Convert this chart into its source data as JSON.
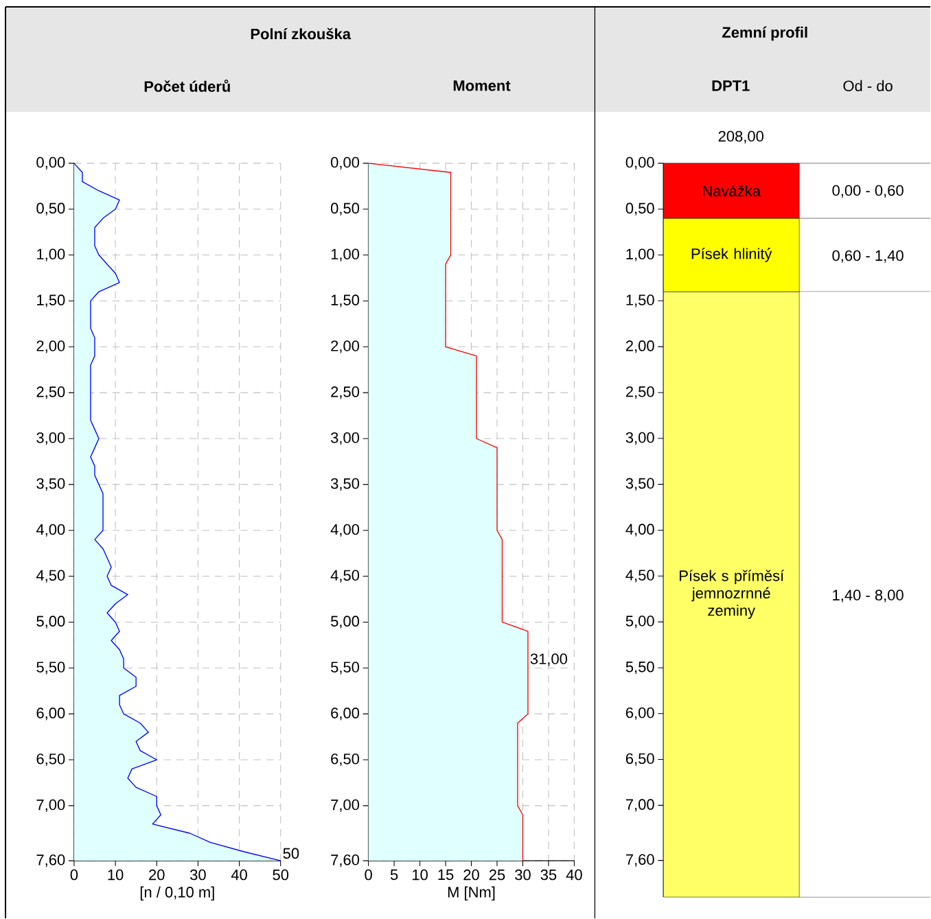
{
  "chart_data": [
    {
      "type": "area",
      "orientation": "horizontal",
      "title": "Polní zkouška",
      "subtitle": "Počet úderů",
      "xlabel": "[n / 0,10 m]",
      "x": [
        0,
        0.1,
        0.2,
        0.3,
        0.4,
        0.5,
        0.6,
        0.7,
        0.8,
        0.9,
        1.0,
        1.1,
        1.2,
        1.3,
        1.4,
        1.5,
        1.6,
        1.7,
        1.8,
        1.9,
        2.0,
        2.1,
        2.2,
        2.3,
        2.4,
        2.5,
        2.6,
        2.7,
        2.8,
        2.9,
        3.0,
        3.1,
        3.2,
        3.3,
        3.4,
        3.5,
        3.6,
        3.7,
        3.8,
        3.9,
        4.0,
        4.1,
        4.2,
        4.3,
        4.4,
        4.5,
        4.6,
        4.7,
        4.8,
        4.9,
        5.0,
        5.1,
        5.2,
        5.3,
        5.4,
        5.5,
        5.6,
        5.7,
        5.8,
        5.9,
        6.0,
        6.1,
        6.2,
        6.3,
        6.4,
        6.5,
        6.6,
        6.7,
        6.8,
        6.9,
        7.0,
        7.1,
        7.2,
        7.3,
        7.4,
        7.5,
        7.6
      ],
      "series": [
        {
          "color": "#0000ff",
          "values": [
            0,
            2,
            2,
            6,
            11,
            10,
            7,
            5,
            5,
            5,
            6,
            8,
            10,
            11,
            6,
            4,
            4,
            4,
            4,
            5,
            5,
            5,
            4,
            4,
            4,
            4,
            4,
            4,
            4,
            5,
            6,
            5,
            4,
            5,
            5,
            6,
            7,
            7,
            7,
            7,
            7,
            5,
            7,
            8,
            9,
            8,
            9,
            13,
            10,
            8,
            10,
            11,
            9,
            11,
            12,
            12,
            15,
            15,
            11,
            11,
            12,
            16,
            18,
            15,
            16,
            20,
            14,
            13,
            15,
            20,
            20,
            21,
            19,
            28,
            33,
            41,
            50
          ]
        }
      ],
      "annotations": [
        {
          "text": "50",
          "x": 50,
          "y": 7.6
        }
      ],
      "xlim": [
        0,
        50
      ],
      "xticks": [
        0,
        10,
        20,
        30,
        40,
        50
      ],
      "ylim": [
        7.6,
        0
      ],
      "yticks": [
        {
          "value": 0,
          "label": "0,00"
        },
        {
          "value": 0.5,
          "label": "0,50"
        },
        {
          "value": 1,
          "label": "1,00"
        },
        {
          "value": 1.5,
          "label": "1,50"
        },
        {
          "value": 2,
          "label": "2,00"
        },
        {
          "value": 2.5,
          "label": "2,50"
        },
        {
          "value": 3,
          "label": "3,00"
        },
        {
          "value": 3.5,
          "label": "3,50"
        },
        {
          "value": 4,
          "label": "4,00"
        },
        {
          "value": 4.5,
          "label": "4,50"
        },
        {
          "value": 5,
          "label": "5,00"
        },
        {
          "value": 5.5,
          "label": "5,50"
        },
        {
          "value": 6,
          "label": "6,00"
        },
        {
          "value": 6.5,
          "label": "6,50"
        },
        {
          "value": 7,
          "label": "7,00"
        },
        {
          "value": 7.6,
          "label": "7,60"
        }
      ],
      "grid": true
    },
    {
      "type": "area",
      "orientation": "horizontal",
      "subtitle": "Moment",
      "xlabel": "M [Nm]",
      "x": [
        0,
        0.1,
        1.0,
        1.1,
        2.0,
        2.1,
        3.0,
        3.1,
        4.0,
        4.1,
        5.0,
        5.1,
        6.0,
        6.1,
        7.0,
        7.1,
        7.6
      ],
      "series": [
        {
          "color": "#ff0000",
          "values": [
            0,
            16,
            16,
            15,
            15,
            21,
            21,
            25,
            25,
            26,
            26,
            31,
            31,
            29,
            29,
            30,
            30
          ]
        }
      ],
      "annotations": [
        {
          "text": "31,00",
          "x": 31,
          "y": 5.5
        }
      ],
      "xlim": [
        0,
        40
      ],
      "xticks": [
        0,
        5,
        10,
        15,
        20,
        25,
        30,
        35,
        40
      ],
      "ylim": [
        7.6,
        0
      ],
      "yticks": [
        {
          "value": 0,
          "label": "0,00"
        },
        {
          "value": 0.5,
          "label": "0,50"
        },
        {
          "value": 1,
          "label": "1,00"
        },
        {
          "value": 1.5,
          "label": "1,50"
        },
        {
          "value": 2,
          "label": "2,00"
        },
        {
          "value": 2.5,
          "label": "2,50"
        },
        {
          "value": 3,
          "label": "3,00"
        },
        {
          "value": 3.5,
          "label": "3,50"
        },
        {
          "value": 4,
          "label": "4,00"
        },
        {
          "value": 4.5,
          "label": "4,50"
        },
        {
          "value": 5,
          "label": "5,00"
        },
        {
          "value": 5.5,
          "label": "5,50"
        },
        {
          "value": 6,
          "label": "6,00"
        },
        {
          "value": 6.5,
          "label": "6,50"
        },
        {
          "value": 7,
          "label": "7,00"
        },
        {
          "value": 7.6,
          "label": "7,60"
        }
      ],
      "grid": true
    },
    {
      "type": "bar",
      "stacked": true,
      "title": "Zemní profil",
      "subtitle": "DPT1",
      "categories": [
        null
      ],
      "series": [
        {
          "name": "Navážka",
          "color": "#ff0000",
          "values": [
            0.6
          ]
        },
        {
          "name": "Písek hlinitý",
          "color": "#ffff00",
          "values": [
            0.8
          ]
        },
        {
          "name": "Písek s příměsí jemnozrnné zeminy",
          "color": "#ffff66",
          "values": [
            6.6
          ]
        }
      ],
      "annotations": [
        "Od - do",
        "208,00",
        "0,00 - 0,60",
        "0,60 - 1,40",
        "1,40 - 8,00"
      ],
      "ylim": [
        8.0,
        0
      ],
      "yticks": [
        {
          "value": 0,
          "label": "0,00"
        },
        {
          "value": 0.5,
          "label": "0,50"
        },
        {
          "value": 1,
          "label": "1,00"
        },
        {
          "value": 1.5,
          "label": "1,50"
        },
        {
          "value": 2,
          "label": "2,00"
        },
        {
          "value": 2.5,
          "label": "2,50"
        },
        {
          "value": 3,
          "label": "3,00"
        },
        {
          "value": 3.5,
          "label": "3,50"
        },
        {
          "value": 4,
          "label": "4,00"
        },
        {
          "value": 4.5,
          "label": "4,50"
        },
        {
          "value": 5,
          "label": "5,00"
        },
        {
          "value": 5.5,
          "label": "5,50"
        },
        {
          "value": 6,
          "label": "6,00"
        },
        {
          "value": 6.5,
          "label": "6,50"
        },
        {
          "value": 7,
          "label": "7,00"
        },
        {
          "value": 7.6,
          "label": "7,60"
        }
      ],
      "tick_labels": "y"
    }
  ]
}
